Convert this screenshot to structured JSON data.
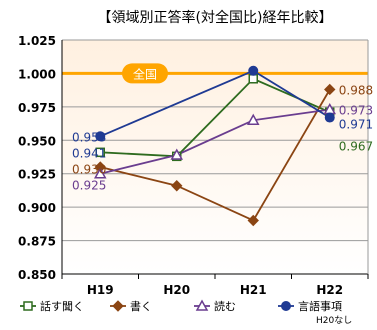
{
  "chart_data": {
    "type": "line",
    "title": "【領域別正答率(対全国比)経年比較】",
    "categories": [
      "H19",
      "H20",
      "H21",
      "H22"
    ],
    "ylim": [
      0.85,
      1.025
    ],
    "yticks": [
      "1.025",
      "1.000",
      "0.975",
      "0.950",
      "0.925",
      "0.900",
      "0.875",
      "0.850"
    ],
    "grid": true,
    "reference_line": {
      "value": 1.0,
      "label": "全国",
      "color": "#FFA500"
    },
    "series": [
      {
        "name": "話す聞く",
        "values": [
          0.941,
          0.938,
          0.996,
          0.971
        ],
        "color": "#2E6B1F",
        "marker": "square"
      },
      {
        "name": "書く",
        "values": [
          0.93,
          0.916,
          0.89,
          0.988
        ],
        "color": "#8B4513",
        "marker": "diamond"
      },
      {
        "name": "読む",
        "values": [
          0.925,
          0.939,
          0.965,
          0.973
        ],
        "color": "#6A3D8F",
        "marker": "triangle"
      },
      {
        "name": "言語事項",
        "note": "H20なし",
        "values": [
          0.953,
          null,
          1.002,
          0.967
        ],
        "color": "#1F3A93",
        "marker": "circle"
      }
    ],
    "data_labels": [
      {
        "series": 3,
        "index": 0,
        "text": "0.953",
        "color": "#1F3A93"
      },
      {
        "series": 0,
        "index": 0,
        "text": "0.941",
        "color": "#1F3A93"
      },
      {
        "series": 1,
        "index": 0,
        "text": "0.930",
        "color": "#8B4513"
      },
      {
        "series": 2,
        "index": 0,
        "text": "0.925",
        "color": "#6A3D8F"
      },
      {
        "series": 1,
        "index": 3,
        "text": "0.988",
        "color": "#8B4513"
      },
      {
        "series": 2,
        "index": 3,
        "text": "0.973",
        "color": "#6A3D8F"
      },
      {
        "series": 0,
        "index": 3,
        "text": "0.971",
        "color": "#1F3A93"
      },
      {
        "series": 3,
        "index": 3,
        "text": "0.967",
        "color": "#2E6B1F"
      }
    ],
    "background_gradient": [
      "#FFF0E0",
      "#FFFFFF"
    ]
  }
}
